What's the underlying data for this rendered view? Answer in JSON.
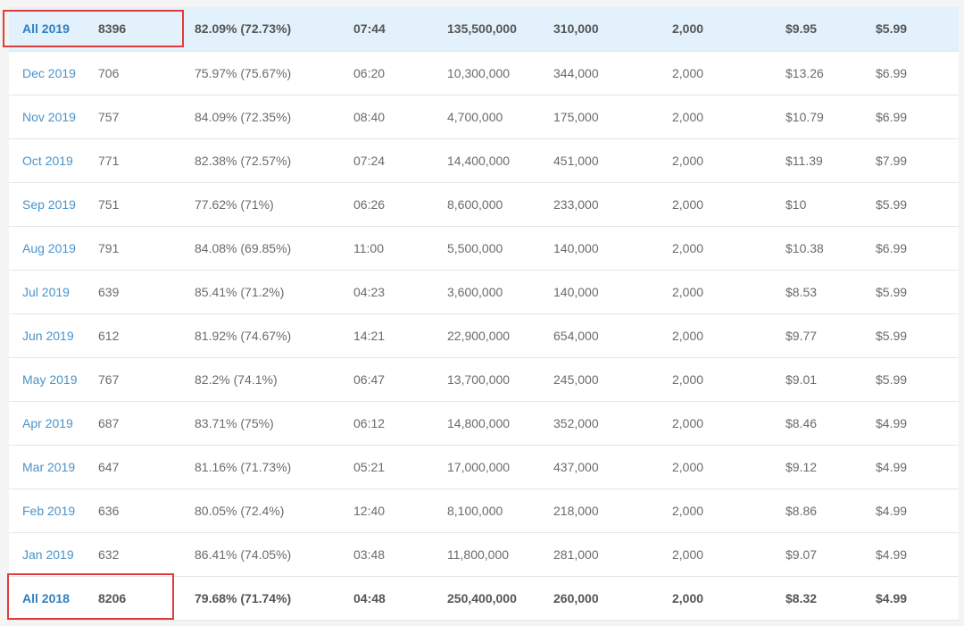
{
  "accent_colors": {
    "period_link": "#4a93c8",
    "highlight_row": "#e2f1fb",
    "annotation_box": "#e03c3c"
  },
  "rows": [
    {
      "period": "All 2019",
      "count": "8396",
      "rate": "82.09% (72.73%)",
      "time": "07:44",
      "total": "135,500,000",
      "avg": "310,000",
      "fixed": "2,000",
      "price_high": "$9.95",
      "price_low": "$5.99",
      "summary": true,
      "highlighted": true
    },
    {
      "period": "Dec 2019",
      "count": "706",
      "rate": "75.97% (75.67%)",
      "time": "06:20",
      "total": "10,300,000",
      "avg": "344,000",
      "fixed": "2,000",
      "price_high": "$13.26",
      "price_low": "$6.99"
    },
    {
      "period": "Nov 2019",
      "count": "757",
      "rate": "84.09% (72.35%)",
      "time": "08:40",
      "total": "4,700,000",
      "avg": "175,000",
      "fixed": "2,000",
      "price_high": "$10.79",
      "price_low": "$6.99"
    },
    {
      "period": "Oct 2019",
      "count": "771",
      "rate": "82.38% (72.57%)",
      "time": "07:24",
      "total": "14,400,000",
      "avg": "451,000",
      "fixed": "2,000",
      "price_high": "$11.39",
      "price_low": "$7.99"
    },
    {
      "period": "Sep 2019",
      "count": "751",
      "rate": "77.62% (71%)",
      "time": "06:26",
      "total": "8,600,000",
      "avg": "233,000",
      "fixed": "2,000",
      "price_high": "$10",
      "price_low": "$5.99"
    },
    {
      "period": "Aug 2019",
      "count": "791",
      "rate": "84.08% (69.85%)",
      "time": "11:00",
      "total": "5,500,000",
      "avg": "140,000",
      "fixed": "2,000",
      "price_high": "$10.38",
      "price_low": "$6.99"
    },
    {
      "period": "Jul 2019",
      "count": "639",
      "rate": "85.41% (71.2%)",
      "time": "04:23",
      "total": "3,600,000",
      "avg": "140,000",
      "fixed": "2,000",
      "price_high": "$8.53",
      "price_low": "$5.99"
    },
    {
      "period": "Jun 2019",
      "count": "612",
      "rate": "81.92% (74.67%)",
      "time": "14:21",
      "total": "22,900,000",
      "avg": "654,000",
      "fixed": "2,000",
      "price_high": "$9.77",
      "price_low": "$5.99"
    },
    {
      "period": "May 2019",
      "count": "767",
      "rate": "82.2% (74.1%)",
      "time": "06:47",
      "total": "13,700,000",
      "avg": "245,000",
      "fixed": "2,000",
      "price_high": "$9.01",
      "price_low": "$5.99"
    },
    {
      "period": "Apr 2019",
      "count": "687",
      "rate": "83.71% (75%)",
      "time": "06:12",
      "total": "14,800,000",
      "avg": "352,000",
      "fixed": "2,000",
      "price_high": "$8.46",
      "price_low": "$4.99"
    },
    {
      "period": "Mar 2019",
      "count": "647",
      "rate": "81.16% (71.73%)",
      "time": "05:21",
      "total": "17,000,000",
      "avg": "437,000",
      "fixed": "2,000",
      "price_high": "$9.12",
      "price_low": "$4.99"
    },
    {
      "period": "Feb 2019",
      "count": "636",
      "rate": "80.05% (72.4%)",
      "time": "12:40",
      "total": "8,100,000",
      "avg": "218,000",
      "fixed": "2,000",
      "price_high": "$8.86",
      "price_low": "$4.99"
    },
    {
      "period": "Jan 2019",
      "count": "632",
      "rate": "86.41% (74.05%)",
      "time": "03:48",
      "total": "11,800,000",
      "avg": "281,000",
      "fixed": "2,000",
      "price_high": "$9.07",
      "price_low": "$4.99"
    },
    {
      "period": "All 2018",
      "count": "8206",
      "rate": "79.68% (71.74%)",
      "time": "04:48",
      "total": "250,400,000",
      "avg": "260,000",
      "fixed": "2,000",
      "price_high": "$8.32",
      "price_low": "$4.99",
      "summary": true,
      "highlighted": false
    }
  ]
}
